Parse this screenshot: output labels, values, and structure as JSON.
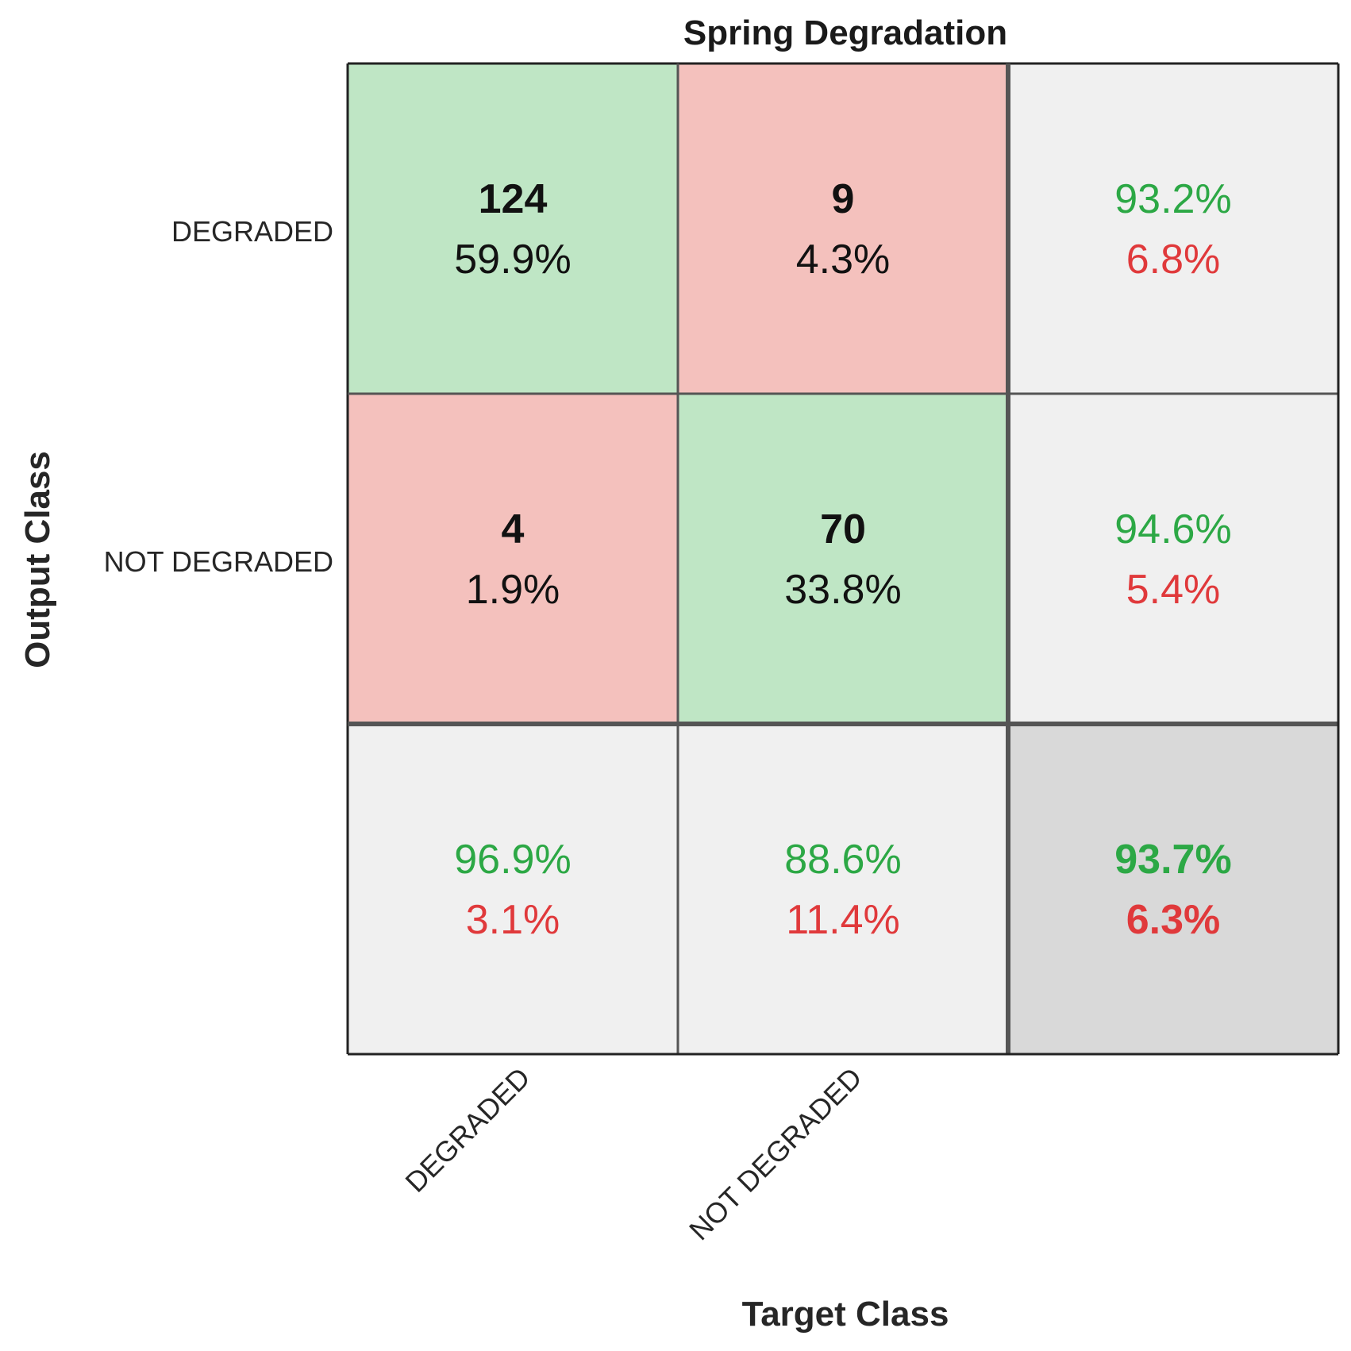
{
  "chart_data": {
    "type": "table",
    "title": "Spring Degradation",
    "xlabel": "Target Class",
    "ylabel": "Output Class",
    "x_tick_labels": [
      "DEGRADED",
      "NOT DEGRADED"
    ],
    "y_tick_labels": [
      "DEGRADED",
      "NOT DEGRADED"
    ],
    "matrix": [
      [
        {
          "count": "124",
          "percent": "59.9%"
        },
        {
          "count": "9",
          "percent": "4.3%"
        }
      ],
      [
        {
          "count": "4",
          "percent": "1.9%"
        },
        {
          "count": "70",
          "percent": "33.8%"
        }
      ]
    ],
    "row_summary": [
      {
        "correct": "93.2%",
        "incorrect": "6.8%"
      },
      {
        "correct": "94.6%",
        "incorrect": "5.4%"
      }
    ],
    "column_summary": [
      {
        "correct": "96.9%",
        "incorrect": "3.1%"
      },
      {
        "correct": "88.6%",
        "incorrect": "11.4%"
      }
    ],
    "overall": {
      "correct": "93.7%",
      "incorrect": "6.3%"
    },
    "colors": {
      "correct_cell": "#bfe6c5",
      "incorrect_cell": "#f4c1bd",
      "summary_cell": "#f0f0f0",
      "overall_cell": "#d9d9d9",
      "correct_text": "#2ca845",
      "incorrect_text": "#e0393b",
      "grid_line": "#555555"
    }
  }
}
